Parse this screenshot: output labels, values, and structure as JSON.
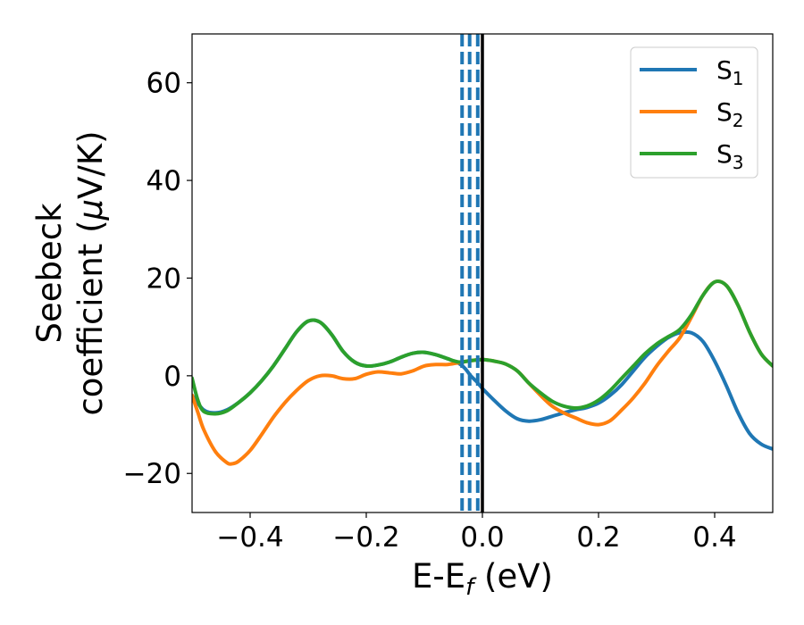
{
  "chart_data": {
    "type": "line",
    "xlabel": "E-E",
    "xlabel_sub": "f",
    "xlabel_unit": " (eV)",
    "ylabel_line1": "Seebeck",
    "ylabel_line2": "coefficient  (",
    "ylabel_mu": "μ",
    "ylabel_unit": "V/K)",
    "xlim": [
      -0.5,
      0.5
    ],
    "ylim": [
      -28,
      70
    ],
    "xticks": [
      -0.4,
      -0.2,
      0.0,
      0.2,
      0.4
    ],
    "xtick_labels": [
      "−0.4",
      "−0.2",
      "0.0",
      "0.2",
      "0.4"
    ],
    "yticks": [
      -20,
      0,
      20,
      40,
      60
    ],
    "ytick_labels": [
      "−20",
      "0",
      "20",
      "40",
      "60"
    ],
    "grid": false,
    "legend_position": "top-right",
    "series": [
      {
        "name": "S",
        "sub": "1",
        "color": "#1f77b4",
        "points": [
          [
            -0.5,
            -4
          ],
          [
            -0.48,
            -7
          ],
          [
            -0.46,
            -7.6
          ],
          [
            -0.44,
            -7
          ],
          [
            -0.42,
            -5.5
          ],
          [
            -0.4,
            -3.5
          ],
          [
            -0.38,
            -1
          ],
          [
            -0.36,
            2
          ],
          [
            -0.34,
            5.5
          ],
          [
            -0.32,
            9
          ],
          [
            -0.3,
            11.2
          ],
          [
            -0.28,
            11
          ],
          [
            -0.26,
            8.5
          ],
          [
            -0.24,
            5
          ],
          [
            -0.22,
            2.8
          ],
          [
            -0.2,
            2
          ],
          [
            -0.18,
            2.2
          ],
          [
            -0.16,
            2.8
          ],
          [
            -0.14,
            3.8
          ],
          [
            -0.12,
            4.6
          ],
          [
            -0.1,
            4.8
          ],
          [
            -0.08,
            4.3
          ],
          [
            -0.06,
            3.5
          ],
          [
            -0.04,
            2.5
          ],
          [
            -0.03,
            1.5
          ],
          [
            -0.02,
            0
          ],
          [
            -0.01,
            -1.2
          ],
          [
            0.0,
            -2.6
          ],
          [
            0.02,
            -5
          ],
          [
            0.04,
            -7.2
          ],
          [
            0.06,
            -8.8
          ],
          [
            0.08,
            -9.3
          ],
          [
            0.1,
            -9
          ],
          [
            0.12,
            -8.3
          ],
          [
            0.14,
            -7.6
          ],
          [
            0.16,
            -7
          ],
          [
            0.18,
            -6.5
          ],
          [
            0.2,
            -5.6
          ],
          [
            0.22,
            -4
          ],
          [
            0.24,
            -1.8
          ],
          [
            0.26,
            1
          ],
          [
            0.28,
            3.8
          ],
          [
            0.3,
            6
          ],
          [
            0.32,
            7.8
          ],
          [
            0.34,
            8.8
          ],
          [
            0.36,
            8.8
          ],
          [
            0.38,
            7
          ],
          [
            0.4,
            3
          ],
          [
            0.42,
            -2
          ],
          [
            0.44,
            -7.5
          ],
          [
            0.46,
            -11.8
          ],
          [
            0.48,
            -14
          ],
          [
            0.5,
            -15
          ]
        ]
      },
      {
        "name": "S",
        "sub": "2",
        "color": "#ff7f0e",
        "points": [
          [
            -0.5,
            -4
          ],
          [
            -0.49,
            -7.5
          ],
          [
            -0.48,
            -11
          ],
          [
            -0.46,
            -15.5
          ],
          [
            -0.44,
            -17.8
          ],
          [
            -0.43,
            -18
          ],
          [
            -0.42,
            -17.5
          ],
          [
            -0.4,
            -15.3
          ],
          [
            -0.38,
            -12
          ],
          [
            -0.36,
            -8.5
          ],
          [
            -0.34,
            -5.5
          ],
          [
            -0.32,
            -3
          ],
          [
            -0.3,
            -1
          ],
          [
            -0.28,
            0
          ],
          [
            -0.26,
            0
          ],
          [
            -0.24,
            -0.6
          ],
          [
            -0.22,
            -0.6
          ],
          [
            -0.2,
            0.3
          ],
          [
            -0.18,
            0.8
          ],
          [
            -0.16,
            0.6
          ],
          [
            -0.14,
            0.4
          ],
          [
            -0.12,
            1
          ],
          [
            -0.1,
            2
          ],
          [
            -0.08,
            2.3
          ],
          [
            -0.06,
            2.3
          ],
          [
            -0.04,
            2.7
          ],
          [
            -0.02,
            3.1
          ],
          [
            0.0,
            3.3
          ],
          [
            0.02,
            3
          ],
          [
            0.04,
            2.4
          ],
          [
            0.06,
            1
          ],
          [
            0.08,
            -1.5
          ],
          [
            0.1,
            -4
          ],
          [
            0.12,
            -6.2
          ],
          [
            0.14,
            -7.6
          ],
          [
            0.16,
            -8.6
          ],
          [
            0.18,
            -9.6
          ],
          [
            0.2,
            -10
          ],
          [
            0.22,
            -9.2
          ],
          [
            0.24,
            -7
          ],
          [
            0.26,
            -4.5
          ],
          [
            0.28,
            -1.5
          ],
          [
            0.3,
            2
          ],
          [
            0.32,
            5
          ],
          [
            0.34,
            7.8
          ],
          [
            0.36,
            12
          ],
          [
            0.38,
            16.5
          ],
          [
            0.4,
            19.2
          ],
          [
            0.42,
            18.5
          ],
          [
            0.44,
            14.5
          ],
          [
            0.46,
            9
          ],
          [
            0.48,
            4.5
          ],
          [
            0.5,
            2
          ]
        ]
      },
      {
        "name": "S",
        "sub": "3",
        "color": "#2ca02c",
        "points": [
          [
            -0.5,
            -0.5
          ],
          [
            -0.49,
            -5
          ],
          [
            -0.48,
            -7.3
          ],
          [
            -0.46,
            -7.8
          ],
          [
            -0.44,
            -7.2
          ],
          [
            -0.42,
            -5.5
          ],
          [
            -0.4,
            -3.5
          ],
          [
            -0.38,
            -1
          ],
          [
            -0.36,
            2
          ],
          [
            -0.34,
            5.5
          ],
          [
            -0.32,
            9
          ],
          [
            -0.3,
            11.2
          ],
          [
            -0.28,
            11
          ],
          [
            -0.26,
            8.5
          ],
          [
            -0.24,
            5
          ],
          [
            -0.22,
            2.8
          ],
          [
            -0.2,
            2
          ],
          [
            -0.18,
            2.2
          ],
          [
            -0.16,
            2.8
          ],
          [
            -0.14,
            3.8
          ],
          [
            -0.12,
            4.6
          ],
          [
            -0.1,
            4.8
          ],
          [
            -0.08,
            4.3
          ],
          [
            -0.06,
            3.5
          ],
          [
            -0.04,
            2.8
          ],
          [
            -0.02,
            3.1
          ],
          [
            0.0,
            3.3
          ],
          [
            0.02,
            3
          ],
          [
            0.04,
            2.4
          ],
          [
            0.06,
            1
          ],
          [
            0.08,
            -1.5
          ],
          [
            0.1,
            -3.5
          ],
          [
            0.12,
            -5.2
          ],
          [
            0.14,
            -6.2
          ],
          [
            0.16,
            -6.6
          ],
          [
            0.18,
            -6.2
          ],
          [
            0.2,
            -5
          ],
          [
            0.22,
            -3
          ],
          [
            0.24,
            -0.5
          ],
          [
            0.26,
            2
          ],
          [
            0.28,
            4.5
          ],
          [
            0.3,
            6.5
          ],
          [
            0.32,
            8
          ],
          [
            0.34,
            9.5
          ],
          [
            0.36,
            12.5
          ],
          [
            0.38,
            16.5
          ],
          [
            0.4,
            19.2
          ],
          [
            0.42,
            18.5
          ],
          [
            0.44,
            14.5
          ],
          [
            0.46,
            9
          ],
          [
            0.48,
            4.5
          ],
          [
            0.5,
            2
          ]
        ]
      }
    ],
    "vlines": [
      {
        "x": -0.035,
        "style": "dashed",
        "color": "#1f77b4"
      },
      {
        "x": -0.022,
        "style": "dashed",
        "color": "#1f77b4"
      },
      {
        "x": -0.008,
        "style": "dashed",
        "color": "#1f77b4"
      },
      {
        "x": 0.0,
        "style": "solid",
        "color": "#000000"
      }
    ]
  }
}
